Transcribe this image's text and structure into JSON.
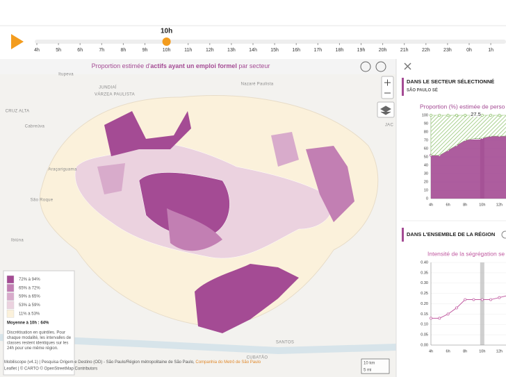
{
  "timeline": {
    "current": "10h",
    "hours": [
      "4h",
      "5h",
      "6h",
      "7h",
      "8h",
      "9h",
      "10h",
      "11h",
      "12h",
      "13h",
      "14h",
      "15h",
      "16h",
      "17h",
      "18h",
      "19h",
      "20h",
      "21h",
      "22h",
      "23h",
      "0h",
      "1h"
    ]
  },
  "map": {
    "title_before": "Proportion estimée d'",
    "title_bold": "actifs ayant un emploi formel",
    "title_after": " par secteur",
    "places": [
      "Itupeva",
      "JUNDIAÍ",
      "VÁRZEA PAULISTA",
      "Nazaré Paulista",
      "CRUZ ALTA",
      "Cabreúva",
      "Araçariguama",
      "São Roque",
      "Ibiúna",
      "CUBATÃO",
      "SANTOS",
      "JAC"
    ],
    "scale": [
      "10 km",
      "5 mi"
    ],
    "attribution": [
      "Mobiliscope (v4.1) | Pesquisa Origem e Destino (OD) - São Paulo/Région métropolitaine de São Paulo, ",
      "Companhia do Metrô de São Paulo",
      "Leaflet | © CARTO © OpenStreetMap Contributors"
    ]
  },
  "legend": {
    "items": [
      {
        "label": "72% à 94%",
        "color": "#a44b94"
      },
      {
        "label": "65% à 72%",
        "color": "#c27fb3"
      },
      {
        "label": "59% à 65%",
        "color": "#d8abcb"
      },
      {
        "label": "53% à 59%",
        "color": "#ebd2df"
      },
      {
        "label": "11% à 53%",
        "color": "#fbf1db"
      }
    ],
    "mean": "Moyenne à 10h : 64%",
    "note": [
      "Discrétisation en quintiles. Pour",
      "chaque modalité, les intervalles de",
      "classes restent identiques sur les",
      "24h pour une même région."
    ]
  },
  "panel": {
    "sector_heading": "DANS LE SECTEUR SÉLECTIONNÉ",
    "sector_name": "SÃO PAULO SÉ",
    "region_heading": "DANS L'ENSEMBLE DE LA RÉGION"
  },
  "chart_data": [
    {
      "type": "area",
      "title": "Proportion (%) estimée de perso",
      "categories": [
        "4h",
        null,
        "6h",
        null,
        "8h",
        null,
        "10h",
        null,
        "12h",
        null
      ],
      "series": [
        {
          "color": "#a44b94",
          "values": [
            52,
            52,
            58,
            64,
            70,
            72,
            72.5,
            75,
            75,
            75
          ]
        },
        {
          "color": "#8dc26b",
          "values": [
            48,
            48,
            42,
            36,
            30,
            28,
            27.5,
            25,
            25,
            25
          ]
        }
      ],
      "ylim": [
        0,
        100
      ],
      "yticks": [
        0,
        10,
        20,
        30,
        40,
        50,
        60,
        70,
        80,
        90,
        100
      ]
    },
    {
      "type": "line",
      "title": "Intensité de la ségrégation se",
      "categories": [
        "4h",
        null,
        "6h",
        null,
        "8h",
        null,
        "10h",
        null,
        "12h",
        null
      ],
      "series": [
        {
          "color": "#c05aa0",
          "values": [
            0.13,
            0.13,
            0.15,
            0.18,
            0.22,
            0.22,
            0.22,
            0.22,
            0.23,
            0.24
          ]
        }
      ],
      "ylim": [
        0,
        0.4
      ],
      "yticks": [
        {
          "value": 0,
          "label": "0.00"
        },
        {
          "value": 0.05,
          "label": "0.05"
        },
        {
          "value": 0.1,
          "label": "0.10"
        },
        {
          "value": 0.15,
          "label": "0.15"
        },
        {
          "value": 0.2,
          "label": "0.20"
        },
        {
          "value": 0.25,
          "label": "0.25"
        },
        {
          "value": 0.3,
          "label": "0.30"
        },
        {
          "value": 0.35,
          "label": "0.35"
        },
        {
          "value": 0.4,
          "label": "0.40"
        }
      ]
    }
  ]
}
